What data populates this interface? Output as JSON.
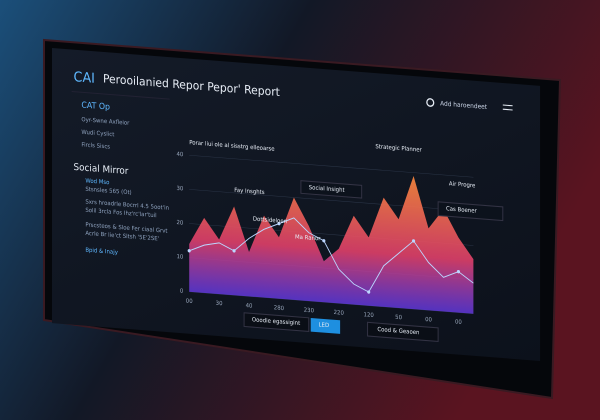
{
  "header": {
    "logo": "CAI",
    "title": "Perooilanied Repor Pepor' Report",
    "search": "Add haroendeet"
  },
  "sidebar": {
    "items": [
      "CAT Op",
      "Oyr-Swne Axfleior",
      "Wudi Cyslict",
      "Fircls Siscs"
    ],
    "section": "Social Mirror",
    "sub_items": [
      "Wod Mso",
      "Stsnsles 565 (Ot)",
      "Sxrs hroadrle Bocrrl 4.5 5oot'in",
      "Solil 3rcla Fos Ihz'rc'lar'tuil",
      "Prscsteos & Sloe Fer ciaal Grvt",
      "Acrle Br lie'ct Sltsh '5E'2SE'",
      "Bpid & Inajy"
    ]
  },
  "annotations": [
    "Strategic Planner",
    "Air Progre",
    "Social Insight",
    "Fay Insghts",
    "Dottsideloeri",
    "Ma Ranor",
    "Cas Boener"
  ],
  "buttons": [
    "Ooodie egassigint",
    "LED",
    "Cood & Geaoen"
  ],
  "chart_data": {
    "type": "area",
    "title": "Porar liui ole al sisstrg elleoarse",
    "categories": [
      "00",
      null,
      "30",
      null,
      "40",
      null,
      "280",
      null,
      "230",
      null,
      "220",
      null,
      "120",
      null,
      "50",
      null,
      "00",
      null,
      "00",
      null
    ],
    "series": [
      {
        "name": "Social Mirror",
        "color": "#ff8a3d",
        "values": [
          14,
          22,
          16,
          26,
          13,
          24,
          18,
          30,
          22,
          12,
          16,
          26,
          20,
          32,
          26,
          39,
          24,
          30,
          22,
          16
        ]
      },
      {
        "name": "Social Insight",
        "color": "#bcd6ff",
        "values": [
          12,
          14,
          15,
          13,
          17,
          20,
          22,
          24,
          20,
          18,
          10,
          6,
          4,
          12,
          16,
          20,
          14,
          10,
          12,
          9
        ]
      }
    ],
    "ylim": [
      0,
      40
    ],
    "yticks": [
      0,
      10,
      20,
      30,
      40
    ],
    "grid": true
  }
}
